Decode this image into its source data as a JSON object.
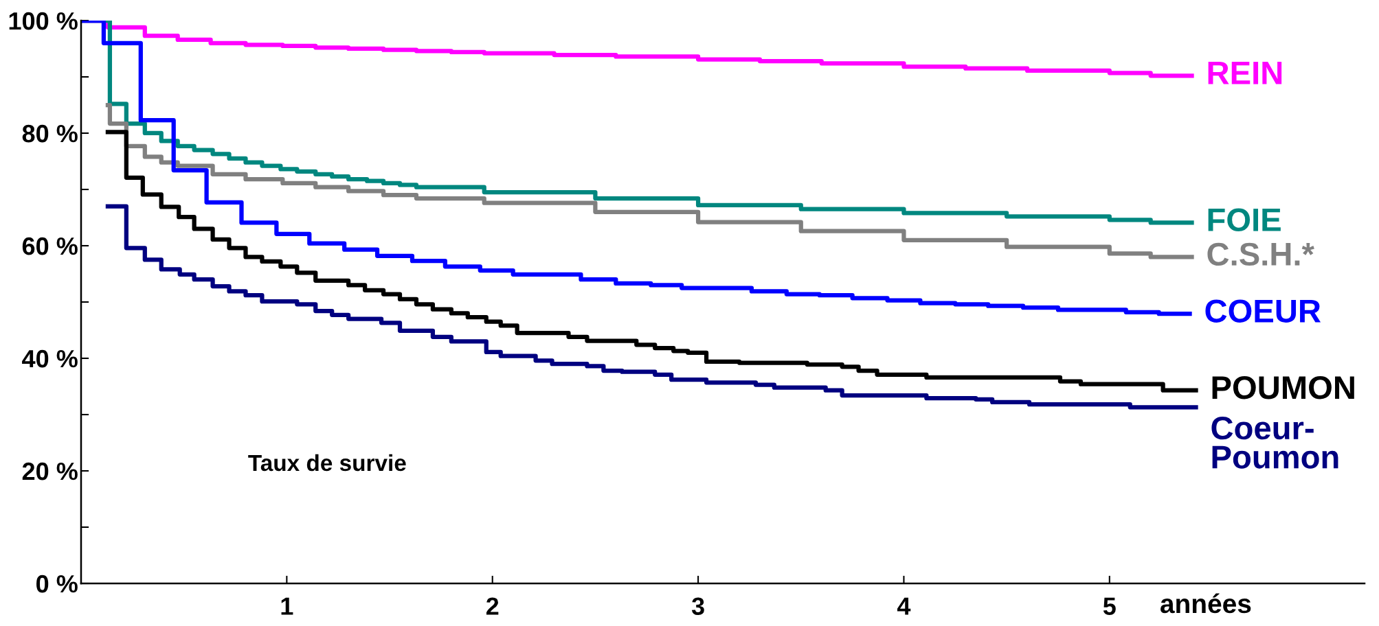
{
  "chart_data": {
    "type": "step",
    "xlabel": "années",
    "annotations": [
      "Taux de survie"
    ],
    "xlim": [
      0,
      6.24
    ],
    "ylim": [
      0,
      100
    ],
    "xticks": [
      1,
      2,
      3,
      4,
      5
    ],
    "yticks": [
      {
        "value": 0,
        "label": "0 %"
      },
      {
        "value": 10,
        "label": null
      },
      {
        "value": 20,
        "label": "20 %"
      },
      {
        "value": 30,
        "label": null
      },
      {
        "value": 40,
        "label": "40 %"
      },
      {
        "value": 50,
        "label": null
      },
      {
        "value": 60,
        "label": "60 %"
      },
      {
        "value": 70,
        "label": null
      },
      {
        "value": 80,
        "label": "80 %"
      },
      {
        "value": 90,
        "label": null
      },
      {
        "value": 100,
        "label": "100 %"
      }
    ],
    "grid": false,
    "legend": false,
    "marker": "none",
    "line_style": "solid",
    "series": [
      {
        "name": "REIN",
        "color": "#ff00ff",
        "x": [
          0,
          0.13,
          0.31,
          0.47,
          0.63,
          0.8,
          0.98,
          1.14,
          1.3,
          1.47,
          1.63,
          1.8,
          1.96,
          2.3,
          2.6,
          3.0,
          3.3,
          3.6,
          4.0,
          4.3,
          4.6,
          5.0,
          5.2,
          5.4
        ],
        "values": [
          100,
          98.8,
          97.3,
          96.6,
          96.0,
          95.7,
          95.5,
          95.2,
          95.0,
          94.8,
          94.6,
          94.4,
          94.2,
          93.9,
          93.6,
          93.1,
          92.8,
          92.4,
          91.8,
          91.5,
          91.1,
          90.7,
          90.2,
          90.2
        ]
      },
      {
        "name": "FOIE",
        "color": "#00877f",
        "x": [
          0,
          0.14,
          0.22,
          0.31,
          0.39,
          0.47,
          0.55,
          0.64,
          0.72,
          0.8,
          0.88,
          0.97,
          1.05,
          1.14,
          1.22,
          1.3,
          1.39,
          1.47,
          1.55,
          1.63,
          1.96,
          2.5,
          3.0,
          3.5,
          4.0,
          4.5,
          5.0,
          5.2,
          5.4
        ],
        "values": [
          100,
          85.2,
          81.7,
          80.0,
          78.6,
          77.7,
          77.0,
          76.3,
          75.5,
          74.8,
          74.2,
          73.6,
          73.2,
          72.7,
          72.3,
          71.8,
          71.5,
          71.1,
          70.8,
          70.4,
          69.5,
          68.4,
          67.2,
          66.5,
          65.8,
          65.2,
          64.6,
          64.1,
          64.1
        ]
      },
      {
        "name": "C.S.H.*",
        "color": "#808080",
        "x": [
          0.13,
          0.14,
          0.22,
          0.31,
          0.39,
          0.47,
          0.64,
          0.8,
          0.98,
          1.14,
          1.3,
          1.47,
          1.63,
          1.96,
          2.5,
          3.0,
          3.5,
          4.0,
          4.5,
          5.0,
          5.2,
          5.4
        ],
        "values": [
          85.0,
          81.7,
          77.7,
          75.8,
          74.8,
          74.2,
          72.7,
          71.8,
          71.1,
          70.4,
          69.7,
          69.0,
          68.4,
          67.6,
          66.0,
          64.2,
          62.6,
          61.0,
          59.8,
          58.6,
          58.0,
          58.0
        ]
      },
      {
        "name": "COEUR",
        "color": "#0000ff",
        "x": [
          0,
          0.11,
          0.29,
          0.45,
          0.61,
          0.78,
          0.95,
          1.11,
          1.28,
          1.44,
          1.61,
          1.77,
          1.94,
          2.1,
          2.43,
          2.6,
          2.77,
          2.92,
          3.26,
          3.43,
          3.59,
          3.75,
          3.92,
          4.08,
          4.25,
          4.41,
          4.58,
          4.75,
          5.08,
          5.24,
          5.39
        ],
        "values": [
          100,
          96.0,
          82.3,
          73.4,
          67.7,
          64.1,
          62.1,
          60.4,
          59.3,
          58.2,
          57.3,
          56.3,
          55.6,
          54.9,
          54.0,
          53.3,
          53.0,
          52.5,
          51.9,
          51.4,
          51.2,
          50.7,
          50.3,
          49.8,
          49.6,
          49.3,
          49.0,
          48.6,
          48.2,
          47.9,
          47.9
        ]
      },
      {
        "name": "POUMON",
        "color": "#000000",
        "x": [
          0.13,
          0.22,
          0.3,
          0.39,
          0.475,
          0.55,
          0.64,
          0.72,
          0.8,
          0.88,
          0.97,
          1.05,
          1.14,
          1.3,
          1.38,
          1.47,
          1.55,
          1.63,
          1.71,
          1.8,
          1.88,
          1.97,
          2.04,
          2.12,
          2.37,
          2.46,
          2.7,
          2.79,
          2.88,
          2.95,
          3.04,
          3.2,
          3.53,
          3.7,
          3.78,
          3.87,
          4.11,
          4.76,
          4.86,
          5.26,
          5.42
        ],
        "values": [
          80.2,
          72.1,
          69.1,
          66.9,
          65.1,
          63.0,
          61.1,
          59.6,
          58.0,
          57.2,
          56.3,
          55.2,
          53.8,
          53.0,
          52.1,
          51.4,
          50.5,
          49.6,
          48.7,
          48.0,
          47.3,
          46.5,
          45.8,
          44.5,
          43.8,
          43.1,
          42.4,
          41.8,
          41.3,
          41.0,
          39.4,
          39.2,
          38.9,
          38.5,
          37.8,
          37.1,
          36.6,
          35.9,
          35.4,
          34.3,
          34.3
        ]
      },
      {
        "name": "Coeur-\nPoumon",
        "color": "#000080",
        "x": [
          0.13,
          0.22,
          0.31,
          0.39,
          0.48,
          0.55,
          0.64,
          0.72,
          0.8,
          0.88,
          1.05,
          1.14,
          1.22,
          1.3,
          1.46,
          1.55,
          1.71,
          1.8,
          1.97,
          2.04,
          2.21,
          2.29,
          2.46,
          2.54,
          2.63,
          2.79,
          2.87,
          3.04,
          3.28,
          3.37,
          3.62,
          3.7,
          4.11,
          4.35,
          4.43,
          4.61,
          5.1,
          5.42
        ],
        "values": [
          67.0,
          59.6,
          57.5,
          55.8,
          54.9,
          54.0,
          52.8,
          51.9,
          51.2,
          50.1,
          49.6,
          48.4,
          47.7,
          47.0,
          46.3,
          44.9,
          43.8,
          43.0,
          41.1,
          40.4,
          39.6,
          39.0,
          38.6,
          37.8,
          37.6,
          37.1,
          36.2,
          35.7,
          35.3,
          34.8,
          34.3,
          33.4,
          32.9,
          32.7,
          32.2,
          31.8,
          31.3,
          31.3
        ]
      }
    ]
  }
}
